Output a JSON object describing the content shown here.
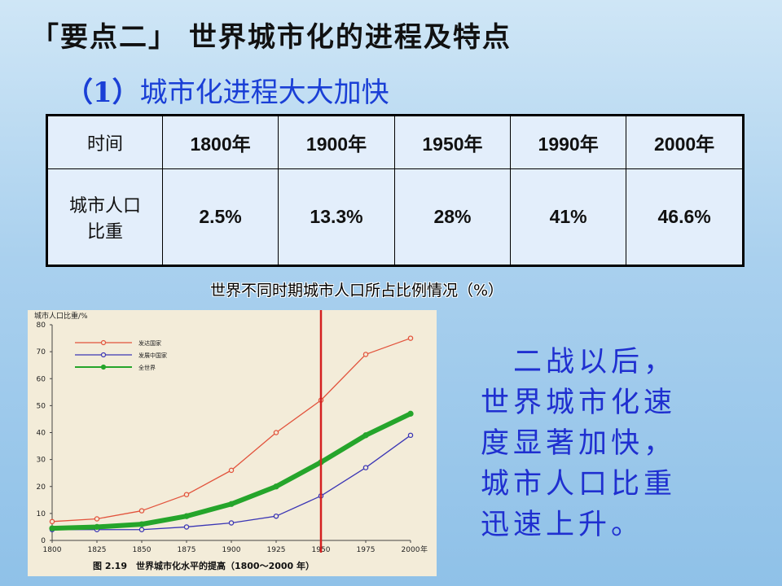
{
  "title": "「要点二」 世界城市化的进程及特点",
  "subtitle": {
    "num": "（1）",
    "text": "城市化进程大大加快"
  },
  "table": {
    "header": [
      "时间",
      "1800年",
      "1900年",
      "1950年",
      "1990年",
      "2000年"
    ],
    "row_label_1": "城市人口",
    "row_label_2": "比重",
    "values": [
      "2.5%",
      "13.3%",
      "28%",
      "41%",
      "46.6%"
    ]
  },
  "table_caption": "世界不同时期城市人口所占比例情况（%）",
  "note_lines": [
    "　二战以后，",
    "世界城市化速",
    "度显著加快，",
    "城市人口比重",
    "迅速上升。"
  ],
  "colors": {
    "developed": "#e2533c",
    "developing": "#3b36b5",
    "world": "#25a52b",
    "marker": "#d42020",
    "note": "#1f2fd0"
  },
  "chart_data": {
    "type": "line",
    "ylabel": "城市人口比重/%",
    "xlabel": "年",
    "caption": "图 2.19　世界城市化水平的提高（1800～2000 年）",
    "x": [
      1800,
      1825,
      1850,
      1875,
      1900,
      1925,
      1950,
      1975,
      2000
    ],
    "xticks": [
      "1800",
      "1825",
      "1850",
      "1875",
      "1900",
      "1925",
      "1950",
      "1975",
      "2000"
    ],
    "yticks": [
      0,
      10,
      20,
      30,
      40,
      50,
      60,
      70,
      80
    ],
    "ylim": [
      0,
      80
    ],
    "xlim": [
      1800,
      2000
    ],
    "vline_x": 1950,
    "legend_position": "top-left",
    "series": [
      {
        "name": "发达国家",
        "values": [
          7,
          8,
          11,
          17,
          26,
          40,
          52,
          69,
          75
        ]
      },
      {
        "name": "发展中国家",
        "values": [
          4,
          4,
          4,
          5,
          6.5,
          9,
          16.5,
          27,
          39
        ]
      },
      {
        "name": "全世界",
        "values": [
          4.5,
          5,
          6,
          9,
          13.5,
          20,
          29,
          39,
          47
        ]
      }
    ]
  }
}
